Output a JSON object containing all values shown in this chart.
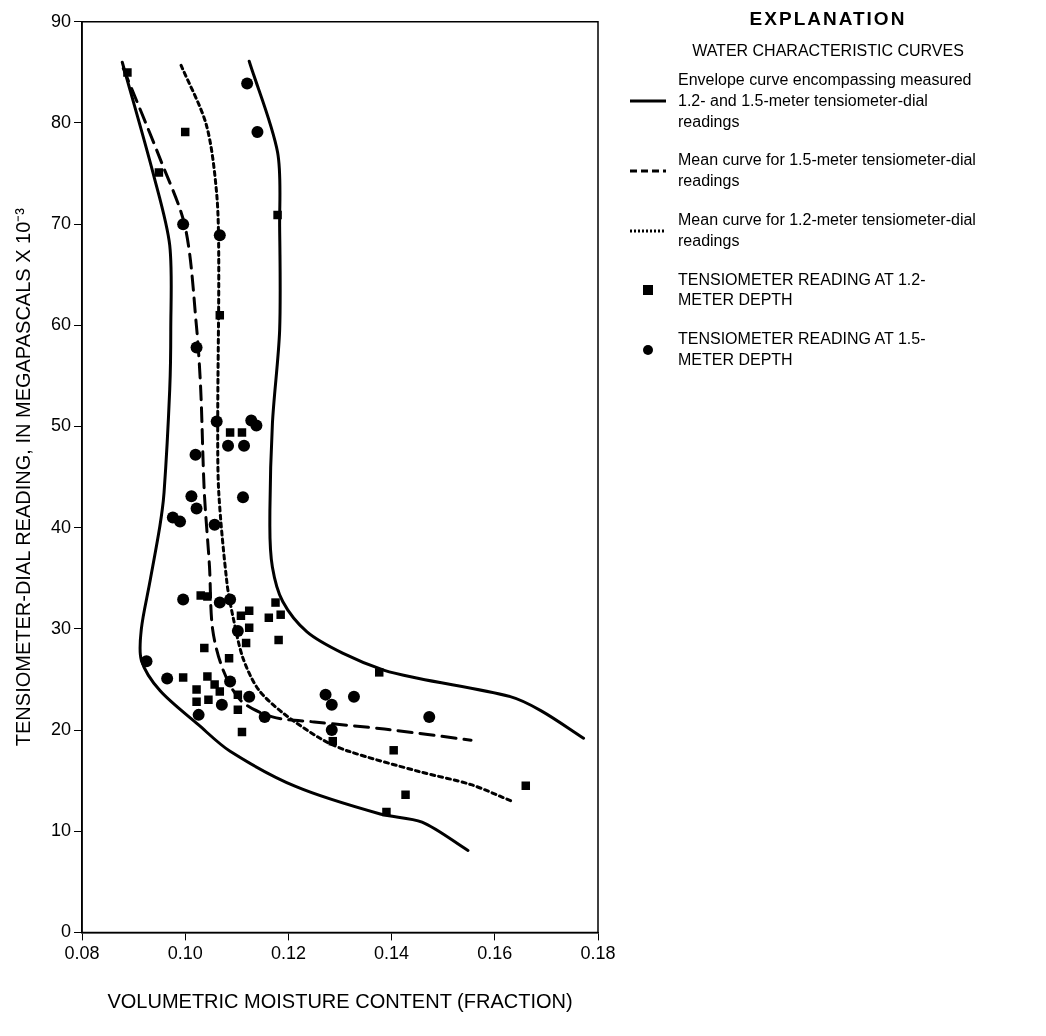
{
  "chart_data": {
    "type": "scatter",
    "xlabel": "VOLUMETRIC MOISTURE CONTENT (FRACTION)",
    "ylabel": "TENSIOMETER-DIAL READING, IN MEGAPASCALS X 10⁻³",
    "legend_title": "EXPLANATION",
    "annotations": [
      "WATER CHARACTERISTIC CURVES"
    ],
    "legend": "right",
    "grid": false,
    "xlim": [
      0.08,
      0.18
    ],
    "xticks": [
      {
        "value": 0.08,
        "label": "0.08"
      },
      {
        "value": 0.1,
        "label": "0.10"
      },
      {
        "value": 0.12,
        "label": "0.12"
      },
      {
        "value": 0.14,
        "label": "0.14"
      },
      {
        "value": 0.16,
        "label": "0.16"
      },
      {
        "value": 0.18,
        "label": "0.18"
      }
    ],
    "ylim": [
      0,
      90
    ],
    "yticks": [
      0,
      10,
      20,
      30,
      40,
      50,
      60,
      70,
      80,
      90
    ],
    "series": [
      {
        "name": "Envelope curve encompassing measured 1.2- and 1.5-meter tensiometer-dial readings",
        "type": "line",
        "color": "#000000",
        "line_style": "solid",
        "marker": "none",
        "x": [
          0.0878,
          0.0939,
          0.097,
          0.0972,
          0.097,
          0.0959,
          0.0951,
          0.0931,
          0.0915,
          0.0915,
          0.0951,
          0.1026,
          0.1087,
          0.1215,
          0.1378,
          0.1459,
          0.1548
        ],
        "values": [
          86.0,
          74.8,
          67.9,
          59.5,
          53.7,
          43.5,
          40.2,
          34.5,
          30.0,
          26.9,
          23.9,
          20.5,
          17.9,
          14.4,
          11.7,
          10.9,
          8.1
        ]
      },
      {
        "type": "line",
        "color": "#000000",
        "line_style": "solid",
        "marker": "none",
        "x": [
          0.1124,
          0.1179,
          0.1183,
          0.1183,
          0.1169,
          0.1164,
          0.1169,
          0.1189,
          0.1236,
          0.1305,
          0.1386,
          0.1453,
          0.163,
          0.169,
          0.1772
        ],
        "values": [
          86.1,
          77.1,
          69.7,
          59.5,
          50.3,
          40.2,
          36.1,
          32.7,
          29.7,
          27.6,
          25.9,
          25.1,
          23.3,
          21.9,
          19.2
        ]
      },
      {
        "name": "Mean curve for 1.5-meter tensiometer-dial readings",
        "type": "line",
        "color": "#000000",
        "line_style": "dashed",
        "marker": "none",
        "x": [
          0.088,
          0.0951,
          0.1,
          0.1022,
          0.103,
          0.1037,
          0.1047,
          0.1053,
          0.1073,
          0.1108,
          0.1169,
          0.125,
          0.1386,
          0.1554
        ],
        "values": [
          85.4,
          76.5,
          69.7,
          59.8,
          53.7,
          43.5,
          36.2,
          30.0,
          26.0,
          22.9,
          21.3,
          20.8,
          20.1,
          19.0
        ]
      },
      {
        "name": "Mean curve for 1.2-meter tensiometer-dial readings",
        "type": "line",
        "color": "#000000",
        "line_style": "dotted",
        "marker": "none",
        "x": [
          0.0992,
          0.1041,
          0.1061,
          0.1065,
          0.1063,
          0.1065,
          0.1081,
          0.1093,
          0.1112,
          0.1142,
          0.1189,
          0.1264,
          0.1317,
          0.1453,
          0.1554,
          0.1636
        ],
        "values": [
          85.7,
          79.8,
          73.0,
          66.3,
          50.3,
          43.5,
          34.5,
          31.1,
          27.1,
          24.0,
          21.7,
          19.1,
          17.9,
          15.9,
          14.6,
          12.9
        ]
      },
      {
        "name": "TENSIOMETER READING AT 1.2-METER DEPTH",
        "type": "scatter",
        "color": "#000000",
        "marker": "square",
        "x": [
          0.0888,
          0.1,
          0.0949,
          0.1179,
          0.1067,
          0.1087,
          0.111,
          0.103,
          0.1043,
          0.1175,
          0.1124,
          0.1185,
          0.1162,
          0.1108,
          0.1124,
          0.1181,
          0.1118,
          0.1037,
          0.1085,
          0.0996,
          0.1043,
          0.1057,
          0.1067,
          0.1022,
          0.1022,
          0.1045,
          0.1102,
          0.1102,
          0.111,
          0.1286,
          0.1376,
          0.1404,
          0.1427,
          0.139,
          0.166
        ],
        "values": [
          85.0,
          79.1,
          75.1,
          70.9,
          61.0,
          49.4,
          49.4,
          33.3,
          33.2,
          32.6,
          31.8,
          31.4,
          31.1,
          31.3,
          30.1,
          28.9,
          28.6,
          28.1,
          27.1,
          25.2,
          25.3,
          24.5,
          23.8,
          24.0,
          22.8,
          23.0,
          23.5,
          22.0,
          19.8,
          18.9,
          25.7,
          18.0,
          13.6,
          11.9,
          14.5
        ]
      },
      {
        "name": "TENSIOMETER READING AT 1.5-METER DEPTH",
        "type": "scatter",
        "color": "#000000",
        "marker": "circle",
        "x": [
          0.112,
          0.114,
          0.0996,
          0.1067,
          0.1022,
          0.1061,
          0.1128,
          0.1138,
          0.1083,
          0.1114,
          0.102,
          0.1012,
          0.1112,
          0.1022,
          0.0976,
          0.099,
          0.1057,
          0.0996,
          0.1067,
          0.1087,
          0.1102,
          0.0925,
          0.0965,
          0.1087,
          0.1071,
          0.1124,
          0.1026,
          0.1154,
          0.1272,
          0.1284,
          0.1327,
          0.1473,
          0.1284
        ],
        "values": [
          83.9,
          79.1,
          70.0,
          68.9,
          57.8,
          50.5,
          50.6,
          50.1,
          48.1,
          48.1,
          47.2,
          43.1,
          43.0,
          41.9,
          41.0,
          40.6,
          40.3,
          32.9,
          32.6,
          32.9,
          29.8,
          26.8,
          25.1,
          24.8,
          22.5,
          23.3,
          21.5,
          21.3,
          23.5,
          22.5,
          23.3,
          21.3,
          20.0
        ]
      }
    ]
  }
}
